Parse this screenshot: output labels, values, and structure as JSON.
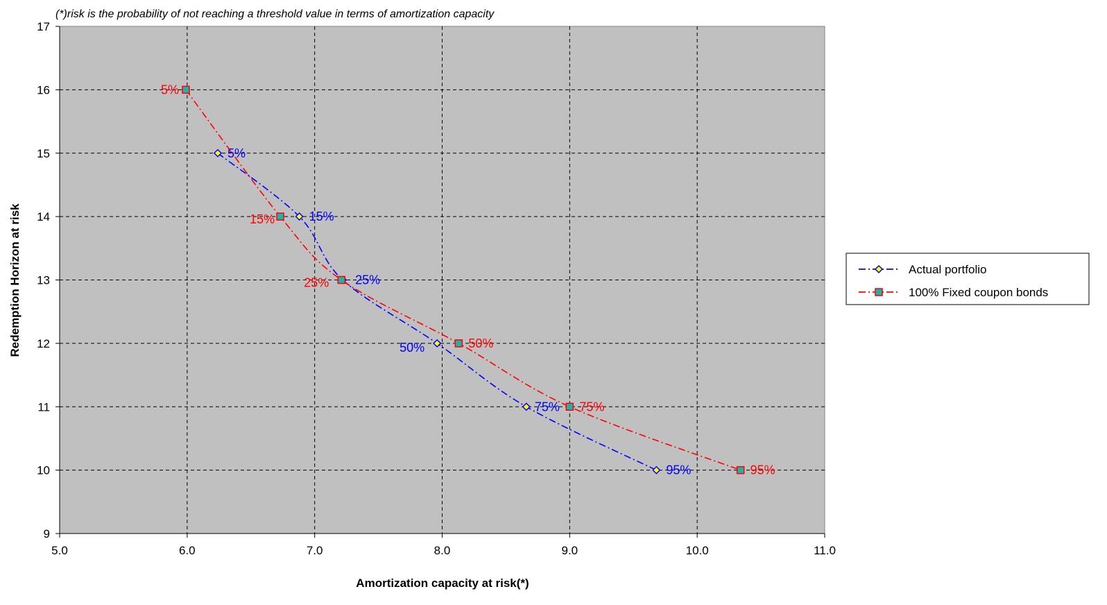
{
  "chart_data": {
    "type": "line",
    "title": "",
    "note": "(*)risk is the probability of not reaching a threshold value in terms of amortization capacity",
    "xlabel": "Amortization capacity at risk(*)",
    "ylabel": "Redemption Horizon at risk",
    "xlim": [
      5.0,
      11.0
    ],
    "ylim": [
      9,
      17
    ],
    "x_ticks": [
      "5.0",
      "6.0",
      "7.0",
      "8.0",
      "9.0",
      "10.0",
      "11.0"
    ],
    "y_ticks": [
      "9",
      "10",
      "11",
      "12",
      "13",
      "14",
      "15",
      "16",
      "17"
    ],
    "grid": true,
    "grid_style": "dashed",
    "plot_background": "#c0c0c0",
    "legend_position": "right",
    "series": [
      {
        "name": "Actual portfolio",
        "color": "#0000ff",
        "marker": "diamond",
        "marker_fill": "#ffff00",
        "line_style": "dash-dot",
        "points": [
          {
            "x": 6.24,
            "y": 15,
            "label": "5%"
          },
          {
            "x": 6.88,
            "y": 14,
            "label": "15%"
          },
          {
            "x": 7.22,
            "y": 13,
            "label": "25%"
          },
          {
            "x": 7.96,
            "y": 12,
            "label": "50%"
          },
          {
            "x": 8.66,
            "y": 11,
            "label": "75%"
          },
          {
            "x": 9.68,
            "y": 10,
            "label": "95%"
          }
        ]
      },
      {
        "name": "100% Fixed coupon bonds",
        "color": "#ff0000",
        "marker": "square",
        "marker_fill": "#20b2aa",
        "line_style": "dash-dot",
        "points": [
          {
            "x": 5.99,
            "y": 16,
            "label": "5%"
          },
          {
            "x": 6.73,
            "y": 14,
            "label": "15%"
          },
          {
            "x": 7.21,
            "y": 13,
            "label": "25%"
          },
          {
            "x": 8.13,
            "y": 12,
            "label": "50%"
          },
          {
            "x": 9.0,
            "y": 11,
            "label": "75%"
          },
          {
            "x": 10.34,
            "y": 10,
            "label": "95%"
          }
        ]
      }
    ]
  }
}
